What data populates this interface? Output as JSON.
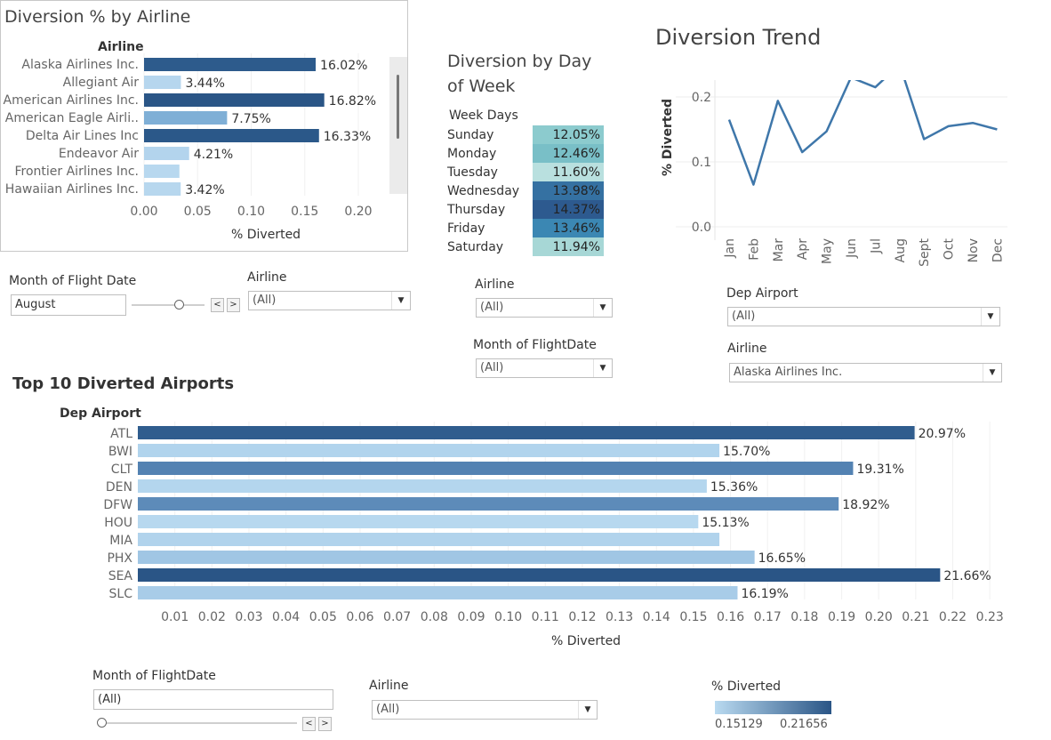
{
  "airline_chart": {
    "title": "Diversion % by Airline",
    "header": "Airline",
    "xlabel": "% Diverted",
    "ticks": [
      "0.00",
      "0.05",
      "0.10",
      "0.15",
      "0.20"
    ],
    "rows": [
      {
        "name": "Alaska Airlines Inc.",
        "value": 0.1602,
        "label": "16.02%",
        "color": "#2d5b8c"
      },
      {
        "name": "Allegiant Air",
        "value": 0.0344,
        "label": "3.44%",
        "color": "#b6d6ee"
      },
      {
        "name": "American Airlines Inc.",
        "value": 0.1682,
        "label": "16.82%",
        "color": "#2a5586"
      },
      {
        "name": "American Eagle Airli..",
        "value": 0.0775,
        "label": "7.75%",
        "color": "#7fafd6"
      },
      {
        "name": "Delta Air Lines Inc",
        "value": 0.1633,
        "label": "16.33%",
        "color": "#2b5889"
      },
      {
        "name": "Endeavor Air",
        "value": 0.0421,
        "label": "4.21%",
        "color": "#b3d4ed"
      },
      {
        "name": "Frontier Airlines Inc.",
        "value": 0.033,
        "label": "",
        "color": "#b8d8ef"
      },
      {
        "name": "Hawaiian Airlines Inc.",
        "value": 0.0342,
        "label": "3.42%",
        "color": "#b7d7ee"
      }
    ]
  },
  "dow": {
    "title_line1": "Diversion by Day",
    "title_line2": "of Week",
    "header": "Week Days",
    "rows": [
      {
        "day": "Sunday",
        "value": "12.05%",
        "color": "#8ccbce"
      },
      {
        "day": "Monday",
        "value": "12.46%",
        "color": "#79bfc7"
      },
      {
        "day": "Tuesday",
        "value": "11.60%",
        "color": "#b9e0df"
      },
      {
        "day": "Wednesday",
        "value": "13.98%",
        "color": "#3571a2"
      },
      {
        "day": "Thursday",
        "value": "14.37%",
        "color": "#2d5a8f"
      },
      {
        "day": "Friday",
        "value": "13.46%",
        "color": "#3b87b3"
      },
      {
        "day": "Saturday",
        "value": "11.94%",
        "color": "#a7d7d6"
      }
    ]
  },
  "trend": {
    "title": "Diversion Trend",
    "ylabel": "% Diverted",
    "yticks": [
      "0.0",
      "0.1",
      "0.2"
    ],
    "months": [
      "Jan",
      "Feb",
      "Mar",
      "Apr",
      "May",
      "Jun",
      "Jul",
      "Aug",
      "Sept",
      "Oct",
      "Nov",
      "Dec"
    ],
    "values": [
      0.165,
      0.065,
      0.194,
      0.115,
      0.147,
      0.23,
      0.215,
      0.25,
      0.135,
      0.155,
      0.16,
      0.15
    ]
  },
  "filters_left": {
    "month_label": "Month of Flight Date",
    "month_value": "August",
    "airline_label": "Airline",
    "airline_value": "(All)",
    "prev": "<",
    "next": ">"
  },
  "filters_middle": {
    "airline_label": "Airline",
    "airline_value": "(All)",
    "month_label": "Month of FlightDate",
    "month_value": "(All)"
  },
  "filters_right": {
    "dep_label": "Dep Airport",
    "dep_value": "(All)",
    "airline_label": "Airline",
    "airline_value": "Alaska Airlines Inc."
  },
  "airports": {
    "title": "Top 10 Diverted Airports",
    "header": "Dep Airport",
    "xlabel": "% Diverted",
    "ticks": [
      "0.01",
      "0.02",
      "0.03",
      "0.04",
      "0.05",
      "0.06",
      "0.07",
      "0.08",
      "0.09",
      "0.10",
      "0.11",
      "0.12",
      "0.13",
      "0.14",
      "0.15",
      "0.16",
      "0.17",
      "0.18",
      "0.19",
      "0.20",
      "0.21",
      "0.22",
      "0.23"
    ],
    "rows": [
      {
        "code": "ATL",
        "value": 0.2097,
        "label": "20.97%",
        "color": "#305d8e"
      },
      {
        "code": "BWI",
        "value": 0.157,
        "label": "15.70%",
        "color": "#b1d4ed"
      },
      {
        "code": "CLT",
        "value": 0.1931,
        "label": "19.31%",
        "color": "#5382b2"
      },
      {
        "code": "DEN",
        "value": 0.1536,
        "label": "15.36%",
        "color": "#b4d6ee"
      },
      {
        "code": "DFW",
        "value": 0.1892,
        "label": "18.92%",
        "color": "#5d8bb9"
      },
      {
        "code": "HOU",
        "value": 0.1513,
        "label": "15.13%",
        "color": "#b7d8ef"
      },
      {
        "code": "MIA",
        "value": 0.157,
        "label": "",
        "color": "#b1d3ec"
      },
      {
        "code": "PHX",
        "value": 0.1665,
        "label": "16.65%",
        "color": "#a0c6e4"
      },
      {
        "code": "SEA",
        "value": 0.2166,
        "label": "21.66%",
        "color": "#2a5586"
      },
      {
        "code": "SLC",
        "value": 0.1619,
        "label": "16.19%",
        "color": "#a8cce8"
      }
    ]
  },
  "filters_bottom": {
    "month_label": "Month of FlightDate",
    "month_value": "(All)",
    "airline_label": "Airline",
    "airline_value": "(All)",
    "legend_label": "% Diverted",
    "legend_min": "0.15129",
    "legend_max": "0.21656",
    "prev": "<",
    "next": ">"
  },
  "colors": {
    "light": "#b9daf0",
    "dark": "#2a5586",
    "trend_line": "#3f77aa"
  }
}
